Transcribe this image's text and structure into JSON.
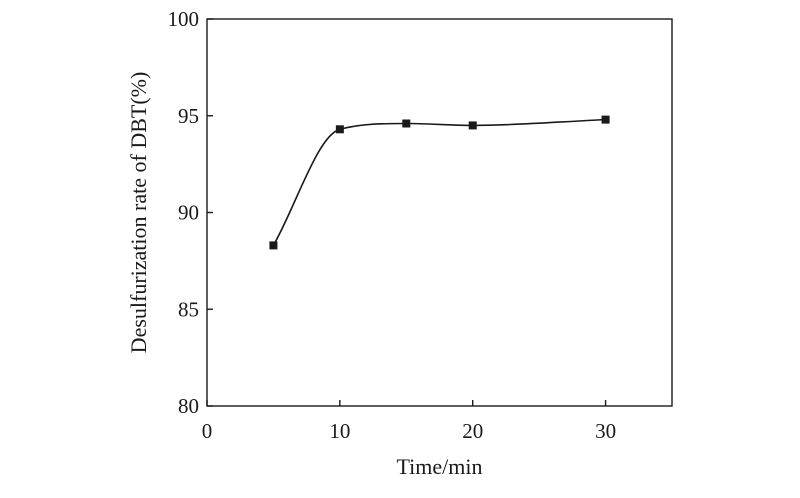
{
  "chart_data": {
    "type": "line",
    "title": "",
    "xlabel": "Time/min",
    "ylabel": "Desulfurization rate of DBT(%)",
    "xlim": [
      0,
      35
    ],
    "ylim": [
      80,
      100
    ],
    "xticks": [
      0,
      10,
      20,
      30
    ],
    "yticks": [
      80,
      85,
      90,
      95,
      100
    ],
    "x_tick_labels": [
      "0",
      "10",
      "20",
      "30"
    ],
    "y_tick_labels": [
      "80",
      "85",
      "90",
      "95",
      "100"
    ],
    "grid": false,
    "legend": "none",
    "series": [
      {
        "x": [
          5,
          10,
          15,
          20,
          30
        ],
        "y": [
          88.3,
          94.3,
          94.6,
          94.5,
          94.8
        ],
        "marker": "square",
        "line": "smooth",
        "color": "#1a1a1a"
      }
    ]
  }
}
